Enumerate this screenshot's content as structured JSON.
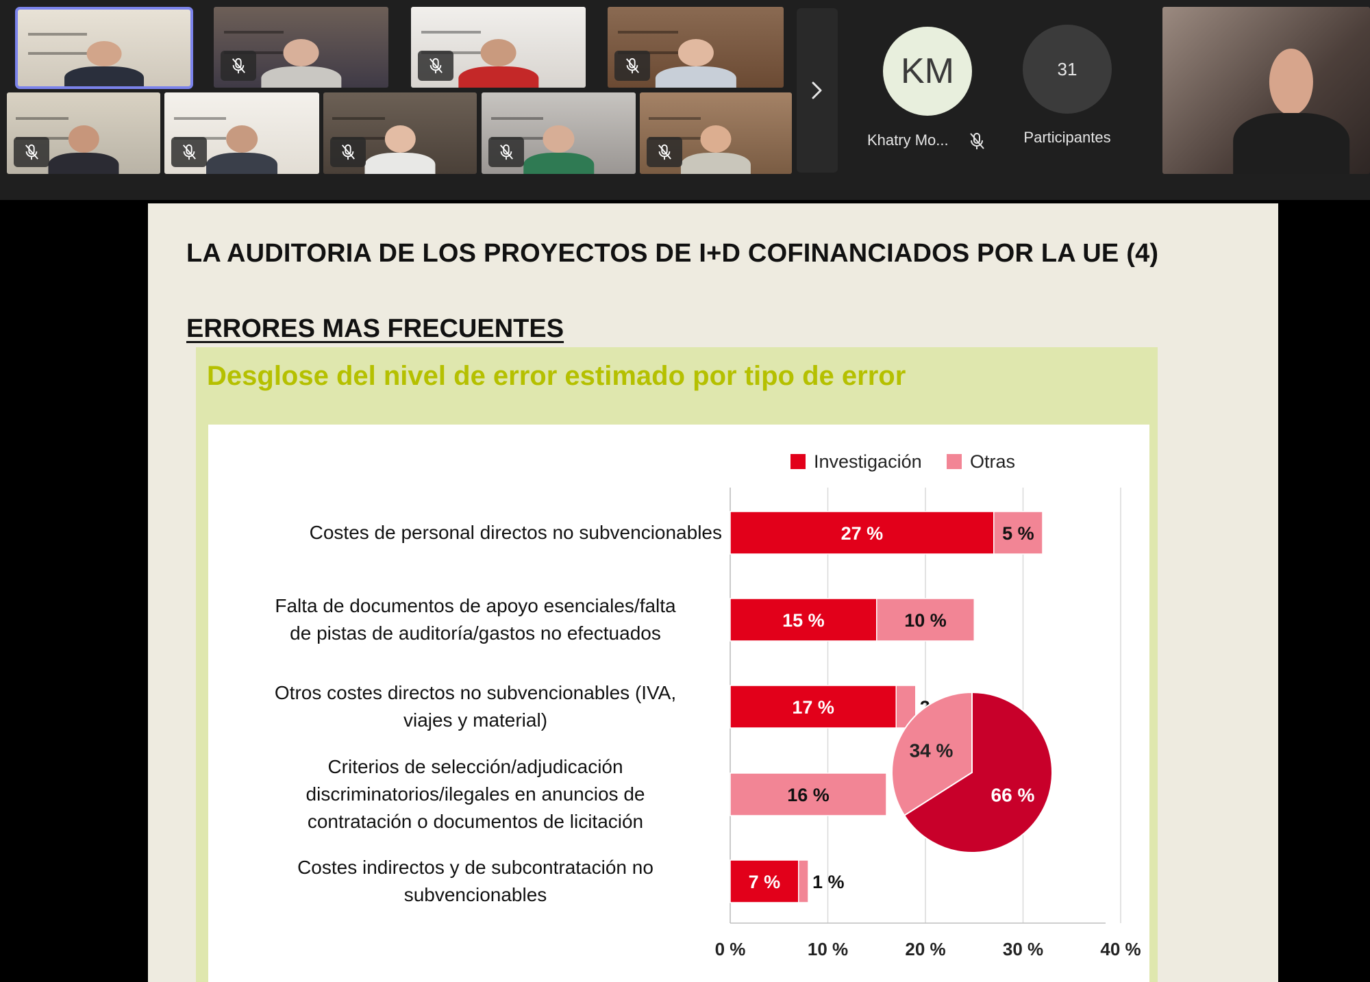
{
  "meeting": {
    "participant_tiles": [
      {
        "id": "p1",
        "active": true,
        "muted": false,
        "bg": "#cfc8bb",
        "wall": "#e8e2d6",
        "shirt": "#2a2f3c",
        "skin": "#d2a58a"
      },
      {
        "id": "p2",
        "active": false,
        "muted": true,
        "bg": "#3f3a46",
        "wall": "#6d5f57",
        "shirt": "#c9c7c2",
        "skin": "#d8b09a"
      },
      {
        "id": "p3",
        "active": false,
        "muted": true,
        "bg": "#d8d4cf",
        "wall": "#f1efec",
        "shirt": "#c42828",
        "skin": "#c99a7e"
      },
      {
        "id": "p4",
        "active": false,
        "muted": true,
        "bg": "#6b4a33",
        "wall": "#8a6a52",
        "shirt": "#c8cfd8",
        "skin": "#e1b9a0"
      },
      {
        "id": "p5",
        "active": false,
        "muted": true,
        "bg": "#b9b3a6",
        "wall": "#d9d2c3",
        "shirt": "#2b2b33",
        "skin": "#c7967b"
      },
      {
        "id": "p6",
        "active": false,
        "muted": true,
        "bg": "#e2ddd4",
        "wall": "#f4f1ec",
        "shirt": "#3a3f4a",
        "skin": "#c79a80"
      },
      {
        "id": "p7",
        "active": false,
        "muted": true,
        "bg": "#4a4038",
        "wall": "#6c6055",
        "shirt": "#e8e8e6",
        "skin": "#e3bca4"
      },
      {
        "id": "p8",
        "active": false,
        "muted": true,
        "bg": "#9a9693",
        "wall": "#c7c4c0",
        "shirt": "#2f7a53",
        "skin": "#d7ae96"
      },
      {
        "id": "p9",
        "active": false,
        "muted": true,
        "bg": "#7a5c43",
        "wall": "#a48266",
        "shirt": "#c9c6bb",
        "skin": "#dcae90"
      }
    ],
    "more_arrow_icon": "chevron-right-icon",
    "avatar": {
      "initials": "KM",
      "name": "Khatry Mo...",
      "muted": true
    },
    "participants": {
      "count": "31",
      "label": "Participantes"
    },
    "presenter_video": {
      "bg": "#6b5a55",
      "shirt": "#222",
      "skin": "#d7a58c"
    }
  },
  "slide": {
    "title": "LA AUDITORIA DE LOS PROYECTOS DE I+D COFINANCIADOS POR LA UE (4)",
    "subtitle": "ERRORES MAS FRECUENTES",
    "chart_heading": "Desglose del nivel de error estimado por tipo de error"
  },
  "chart_data": [
    {
      "type": "bar",
      "orientation": "horizontal",
      "stacked": true,
      "title": "Desglose del nivel de error estimado por tipo de error",
      "categories": [
        "Costes de personal directos no subvencionables",
        "Falta de documentos de apoyo esenciales/falta de pistas de auditoría/gastos no efectuados",
        "Otros costes directos no subvencionables (IVA, viajes y material)",
        "Criterios de selección/adjudicación discriminatorios/ilegales en anuncios de contratación o documentos de licitación",
        "Costes indirectos y de subcontratación no subvencionables"
      ],
      "category_lines": [
        [
          "Costes de personal directos no subvencionables"
        ],
        [
          "Falta de documentos de apoyo esenciales/falta",
          "de pistas de auditoría/gastos no efectuados"
        ],
        [
          "Otros costes directos no subvencionables (IVA,",
          "viajes y material)"
        ],
        [
          "Criterios de selección/adjudicación",
          "discriminatorios/ilegales en anuncios de",
          "contratación o documentos de licitación"
        ],
        [
          "Costes indirectos y de subcontratación no",
          "subvencionables"
        ]
      ],
      "series": [
        {
          "name": "Investigación",
          "color": "#e2001a",
          "values": [
            27,
            15,
            17,
            0,
            7
          ],
          "labels": [
            "27 %",
            "15 %",
            "17 %",
            "",
            "7 %"
          ]
        },
        {
          "name": "Otras",
          "color": "#f28595",
          "values": [
            5,
            10,
            2,
            16,
            1
          ],
          "labels": [
            "5 %",
            "10 %",
            "2 %",
            "16 %",
            "1 %"
          ]
        }
      ],
      "xlim": [
        0,
        45
      ],
      "xticks": [
        0,
        10,
        20,
        30,
        40
      ],
      "xtick_labels": [
        "0 %",
        "10 %",
        "20 %",
        "30 %",
        "40 %"
      ],
      "grid": true,
      "legend": "top-right"
    },
    {
      "type": "pie",
      "slices": [
        {
          "name": "Investigación",
          "value": 66,
          "label": "66 %",
          "color": "#c8002a"
        },
        {
          "name": "Otras",
          "value": 34,
          "label": "34 %",
          "color": "#f28595"
        }
      ]
    }
  ]
}
